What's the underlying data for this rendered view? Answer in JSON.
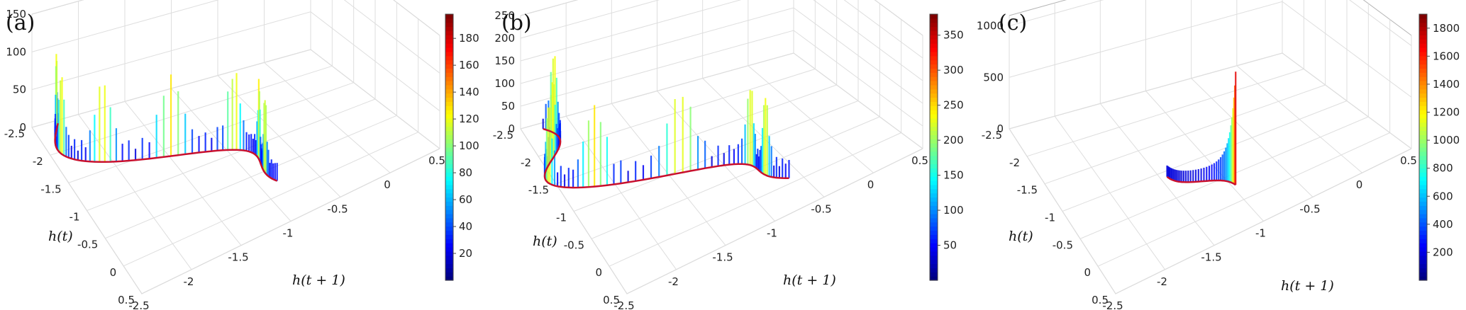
{
  "chart_data": [
    {
      "type": "surface3d",
      "panel_label": "(a)",
      "xlabel": "h(t)",
      "ylabel": "h(t + 1)",
      "x_ticks": [
        "-2.5",
        "-2",
        "-1.5",
        "-1",
        "-0.5",
        "0",
        "0.5"
      ],
      "y_ticks": [
        "-2.5",
        "-2",
        "-1.5",
        "-1",
        "-0.5",
        "0",
        "0.5"
      ],
      "z_ticks": [
        "0",
        "50",
        "100",
        "150"
      ],
      "zlim": [
        0,
        150
      ],
      "colorbar_ticks": [
        "20",
        "40",
        "60",
        "80",
        "100",
        "120",
        "140",
        "160",
        "180"
      ],
      "colorbar_range": [
        0,
        198
      ],
      "colors": {
        "curve": "#c8102e",
        "surface_low": "#00008f",
        "surface_high": "#7f0000"
      }
    },
    {
      "type": "surface3d",
      "panel_label": "(b)",
      "xlabel": "h(t)",
      "ylabel": "h(t + 1)",
      "x_ticks": [
        "-2.5",
        "-2",
        "-1.5",
        "-1",
        "-0.5",
        "0",
        "0.5"
      ],
      "y_ticks": [
        "-2.5",
        "-2",
        "-1.5",
        "-1",
        "-0.5",
        "0",
        "0.5"
      ],
      "z_ticks": [
        "0",
        "50",
        "100",
        "150",
        "200",
        "250"
      ],
      "zlim": [
        0,
        250
      ],
      "colorbar_ticks": [
        "50",
        "100",
        "150",
        "200",
        "250",
        "300",
        "350"
      ],
      "colorbar_range": [
        0,
        380
      ],
      "colors": {
        "curve": "#c8102e",
        "surface_low": "#00008f",
        "surface_high": "#7f0000"
      }
    },
    {
      "type": "surface3d",
      "panel_label": "(c)",
      "xlabel": "h(t)",
      "ylabel": "h(t + 1)",
      "x_ticks": [
        "-2.5",
        "-2",
        "-1.5",
        "-1",
        "-0.5",
        "0",
        "0.5"
      ],
      "y_ticks": [
        "-2.5",
        "-2",
        "-1.5",
        "-1",
        "-0.5",
        "0",
        "0.5"
      ],
      "z_ticks": [
        "0",
        "500",
        "1000"
      ],
      "zlim": [
        0,
        1100
      ],
      "colorbar_ticks": [
        "200",
        "400",
        "600",
        "800",
        "1000",
        "1200",
        "1400",
        "1600",
        "1800"
      ],
      "colorbar_range": [
        0,
        1900
      ],
      "colors": {
        "curve": "#c8102e",
        "surface_low": "#00008f",
        "surface_high": "#7f0000"
      }
    }
  ]
}
